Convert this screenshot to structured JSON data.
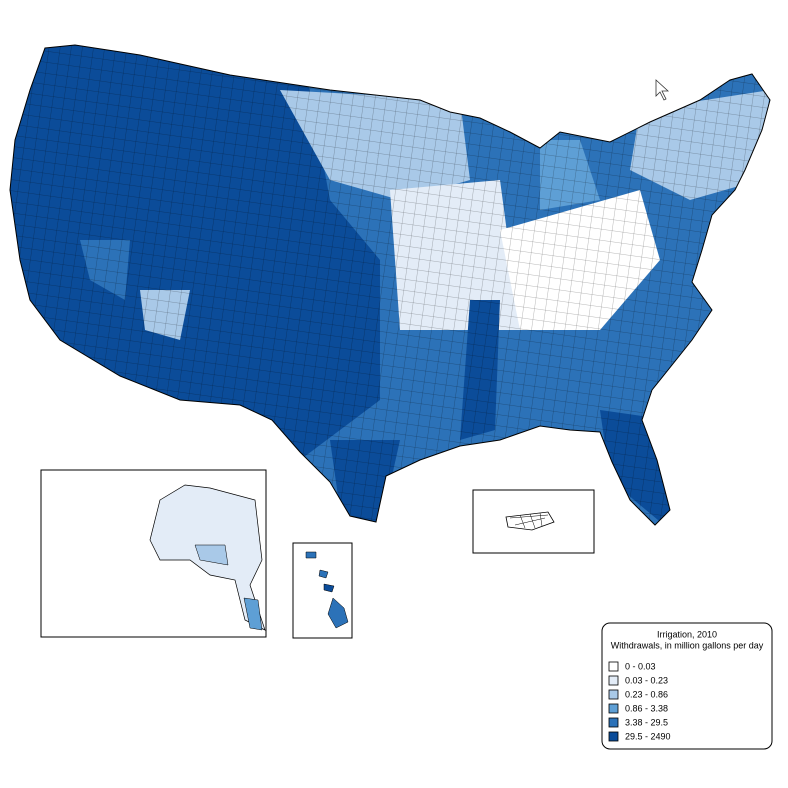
{
  "legend": {
    "title": "Irrigation, 2010",
    "subtitle": "Withdrawals, in million gallons per day",
    "classes": [
      {
        "label": "0 - 0.03",
        "color": "#ffffff"
      },
      {
        "label": "0.03 - 0.23",
        "color": "#e3ecf7"
      },
      {
        "label": "0.23 - 0.86",
        "color": "#a9c9e8"
      },
      {
        "label": "0.86 - 3.38",
        "color": "#5e9fd5"
      },
      {
        "label": "3.38 - 29.5",
        "color": "#2c72b8"
      },
      {
        "label": "29.5  - 2490",
        "color": "#0b4c99"
      }
    ]
  }
}
